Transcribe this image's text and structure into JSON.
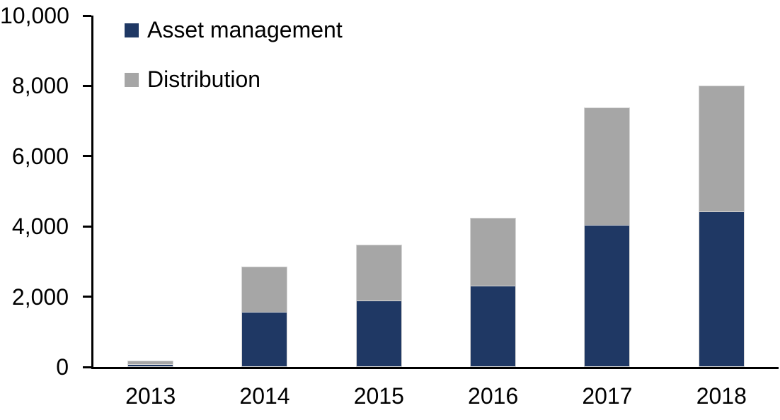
{
  "chart_data": {
    "type": "bar",
    "stacked": true,
    "title": "",
    "xlabel": "",
    "ylabel": "",
    "categories": [
      "2013",
      "2014",
      "2015",
      "2016",
      "2017",
      "2018"
    ],
    "series": [
      {
        "name": "Asset management",
        "color": "#1F3864",
        "values": [
          70,
          1550,
          1870,
          2290,
          4020,
          4410
        ]
      },
      {
        "name": "Distribution",
        "color": "#A6A6A6",
        "values": [
          120,
          1310,
          1620,
          1950,
          3360,
          3590
        ]
      }
    ],
    "stack_totals": [
      190,
      2860,
      3490,
      4240,
      7380,
      8000
    ],
    "ylim": [
      0,
      10000
    ],
    "y_ticks": {
      "values": [
        0,
        2000,
        4000,
        6000,
        8000,
        10000
      ],
      "labels": [
        "0",
        "2,000",
        "4,000",
        "6,000",
        "8,000",
        "10,000"
      ]
    },
    "grid": false,
    "legend": {
      "position": "inside-top-left",
      "entries": [
        "Asset management",
        "Distribution"
      ]
    }
  },
  "colors": {
    "background": "#FFFFFF",
    "axis": "#000000",
    "text": "#000000",
    "series_asset_management": "#1F3864",
    "series_distribution": "#A6A6A6",
    "bar_border": "#D6D6D6"
  }
}
